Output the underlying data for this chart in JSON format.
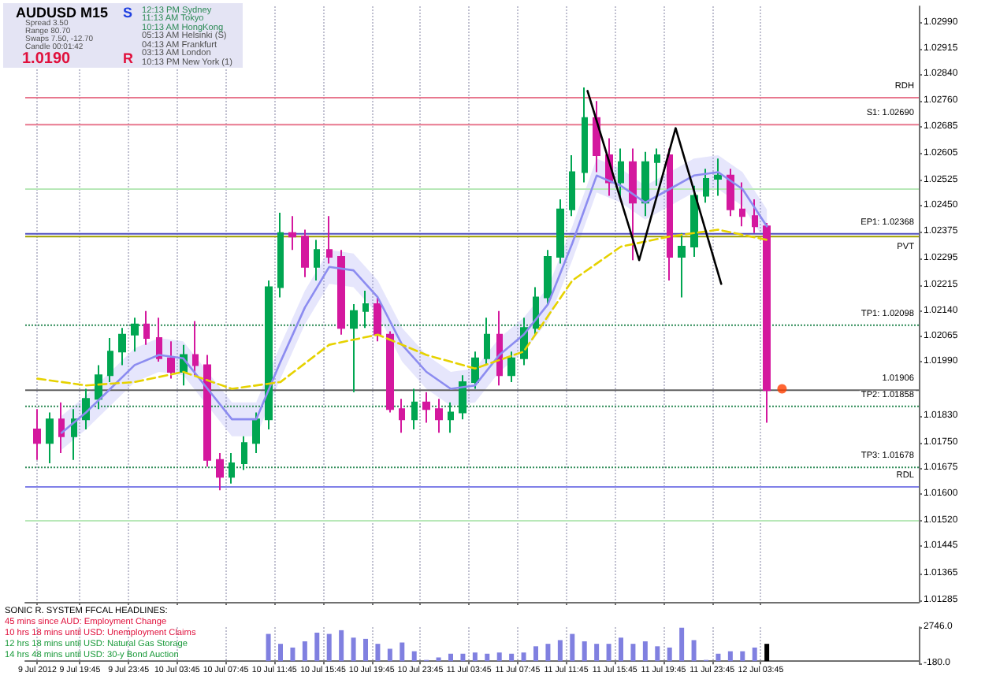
{
  "chart_data": [
    {
      "type": "candlestick",
      "marker": "none",
      "grid": "x",
      "tick_labels": "y",
      "xlim": [
        "2012-07-09T15:15",
        "2012-07-12T16:45"
      ],
      "xticks": [
        {
          "value": "2012-07-09T16:15",
          "label": null
        },
        {
          "value": "2012-07-09T19:45",
          "label": null
        },
        {
          "value": "2012-07-09T23:45",
          "label": null
        },
        {
          "value": "2012-07-10T03:45",
          "label": null
        },
        {
          "value": "2012-07-10T07:45",
          "label": null
        },
        {
          "value": "2012-07-10T11:45",
          "label": null
        },
        {
          "value": "2012-07-10T15:45",
          "label": null
        },
        {
          "value": "2012-07-10T19:45",
          "label": null
        },
        {
          "value": "2012-07-10T23:45",
          "label": null
        },
        {
          "value": "2012-07-11T03:45",
          "label": null
        },
        {
          "value": "2012-07-11T07:45",
          "label": null
        },
        {
          "value": "2012-07-11T11:45",
          "label": null
        },
        {
          "value": "2012-07-11T15:45",
          "label": null
        },
        {
          "value": "2012-07-11T19:45",
          "label": null
        },
        {
          "value": "2012-07-11T23:45",
          "label": null
        },
        {
          "value": "2012-07-12T03:45",
          "label": null
        }
      ],
      "ylim": [
        1.0128,
        1.0304
      ],
      "yticks": [
        {
          "value": 1.0299,
          "label": "1.02990"
        },
        1.02915,
        {
          "value": 1.0284,
          "label": "1.02840"
        },
        {
          "value": 1.0276,
          "label": "1.02760"
        },
        1.02685,
        1.02605,
        1.02525,
        {
          "value": 1.0245,
          "label": "1.02450"
        },
        1.02375,
        1.02295,
        1.02215,
        {
          "value": 1.0214,
          "label": "1.02140"
        },
        1.02065,
        {
          "value": 1.0199,
          "label": "1.01990"
        },
        {
          "value": 1.0183,
          "label": "1.01830"
        },
        {
          "value": 1.0175,
          "label": "1.01750"
        },
        1.01675,
        {
          "value": 1.016,
          "label": "1.01600"
        },
        {
          "value": 1.0152,
          "label": "1.01520"
        },
        1.01445,
        1.01365,
        1.01285
      ],
      "ref_lines": [
        {
          "axis": "y",
          "value": 1.0269,
          "label": "S1: 1.02690",
          "color": "#e8788f"
        },
        {
          "axis": "y",
          "value": 1.02368,
          "label": "EP1: 1.02368",
          "color": "#5050c0"
        },
        {
          "axis": "y",
          "value": 1.02098,
          "label": "TP1: 1.02098",
          "color": "#2e8b57",
          "line_style": "dotted"
        },
        {
          "axis": "y",
          "value": 1.01858,
          "label": "TP2: 1.01858",
          "color": "#2e8b57",
          "line_style": "dotted"
        },
        {
          "axis": "y",
          "value": 1.01678,
          "label": "TP3: 1.01678",
          "color": "#2e8b57",
          "line_style": "dotted"
        },
        {
          "axis": "y",
          "value": 1.01906,
          "label": "1.01906",
          "color": "#606060"
        },
        {
          "axis": "y",
          "value": 1.0277,
          "label": "RDH",
          "color": "#e8788f"
        },
        {
          "axis": "y",
          "value": 1.0236,
          "label": "PVT",
          "color": "#a0a000"
        },
        {
          "axis": "y",
          "value": 1.0162,
          "label": "RDL",
          "color": "#8080e8"
        },
        {
          "axis": "y",
          "value": 1.025,
          "color": "#b8e8b8"
        },
        {
          "axis": "y",
          "value": 1.0152,
          "color": "#b8e8b8"
        }
      ],
      "annotations": [
        "AUDUSD M15",
        "Spread 3.50",
        "Range 80.70",
        "Swaps 7.50, -12.70",
        "Candle 00:01:42",
        "1.0190",
        "S",
        "R",
        "12:13 PM Sydney",
        "11:13 AM Tokyo",
        "10:13 AM HongKong",
        "05:13 AM Helsinki (S)",
        "04:13 AM Frankfurt",
        "03:13 AM London",
        "10:13 PM New York (1)"
      ],
      "series": [
        {
          "x": [
            "2012-07-09T16:15",
            "2012-07-09T17:15",
            "2012-07-09T18:15",
            "2012-07-09T19:15",
            "2012-07-09T20:15",
            "2012-07-09T21:15",
            "2012-07-09T22:15",
            "2012-07-09T23:15",
            "2012-07-10T00:15",
            "2012-07-10T01:15",
            "2012-07-10T02:15",
            "2012-07-10T03:15",
            "2012-07-10T04:15",
            "2012-07-10T05:15",
            "2012-07-10T06:15",
            "2012-07-10T07:15",
            "2012-07-10T08:15",
            "2012-07-10T09:15",
            "2012-07-10T10:15",
            "2012-07-10T11:15",
            "2012-07-10T12:15",
            "2012-07-10T13:15",
            "2012-07-10T14:15",
            "2012-07-10T15:15",
            "2012-07-10T16:15",
            "2012-07-10T17:15",
            "2012-07-10T18:15",
            "2012-07-10T19:15",
            "2012-07-10T20:15",
            "2012-07-10T21:15",
            "2012-07-10T22:15",
            "2012-07-10T23:15",
            "2012-07-11T00:15",
            "2012-07-11T01:15",
            "2012-07-11T02:15",
            "2012-07-11T03:15",
            "2012-07-11T04:15",
            "2012-07-11T05:15",
            "2012-07-11T06:15",
            "2012-07-11T07:15",
            "2012-07-11T08:15",
            "2012-07-11T09:15",
            "2012-07-11T10:15",
            "2012-07-11T11:15",
            "2012-07-11T12:15",
            "2012-07-11T13:15",
            "2012-07-11T14:15",
            "2012-07-11T15:15",
            "2012-07-11T16:15",
            "2012-07-11T17:15",
            "2012-07-11T18:15",
            "2012-07-11T19:15",
            "2012-07-11T20:15",
            "2012-07-11T21:15",
            "2012-07-11T22:15",
            "2012-07-11T23:15",
            "2012-07-12T00:15",
            "2012-07-12T01:15",
            "2012-07-12T02:15",
            "2012-07-12T03:15",
            "2012-07-12T04:15"
          ],
          "ohlc": [
            [
              1.0179,
              1.0185,
              1.017,
              1.0175
            ],
            [
              1.0175,
              1.0184,
              1.0169,
              1.0182
            ],
            [
              1.0182,
              1.0187,
              1.0172,
              1.0177
            ],
            [
              1.0177,
              1.0185,
              1.017,
              1.0182
            ],
            [
              1.0182,
              1.0191,
              1.0179,
              1.0188
            ],
            [
              1.0188,
              1.0198,
              1.0185,
              1.0195
            ],
            [
              1.0195,
              1.0206,
              1.0193,
              1.0202
            ],
            [
              1.0202,
              1.0209,
              1.0198,
              1.0207
            ],
            [
              1.0207,
              1.0212,
              1.0202,
              1.021
            ],
            [
              1.021,
              1.0214,
              1.0204,
              1.0206
            ],
            [
              1.0206,
              1.0212,
              1.0199,
              1.02
            ],
            [
              1.02,
              1.0205,
              1.0194,
              1.0196
            ],
            [
              1.0196,
              1.0204,
              1.0192,
              1.0201
            ],
            [
              1.0201,
              1.0211,
              1.0195,
              1.0198
            ],
            [
              1.0198,
              1.0201,
              1.0168,
              1.017
            ],
            [
              1.017,
              1.0172,
              1.0161,
              1.0165
            ],
            [
              1.0165,
              1.0172,
              1.0163,
              1.0169
            ],
            [
              1.0169,
              1.0177,
              1.0167,
              1.0175
            ],
            [
              1.0175,
              1.0184,
              1.0172,
              1.0182
            ],
            [
              1.0182,
              1.0223,
              1.0179,
              1.0221
            ],
            [
              1.0221,
              1.0243,
              1.0218,
              1.0237
            ],
            [
              1.0237,
              1.0242,
              1.0232,
              1.0236
            ],
            [
              1.0236,
              1.0238,
              1.0224,
              1.0227
            ],
            [
              1.0227,
              1.0235,
              1.0223,
              1.0232
            ],
            [
              1.0232,
              1.0242,
              1.0228,
              1.023
            ],
            [
              1.023,
              1.0232,
              1.0207,
              1.0209
            ],
            [
              1.0209,
              1.0216,
              1.019,
              1.0214
            ],
            [
              1.0214,
              1.022,
              1.0209,
              1.0216
            ],
            [
              1.0216,
              1.0218,
              1.0205,
              1.0207
            ],
            [
              1.0207,
              1.0208,
              1.0184,
              1.0185
            ],
            [
              1.0185,
              1.0188,
              1.0178,
              1.0182
            ],
            [
              1.0182,
              1.0191,
              1.0179,
              1.0187
            ],
            [
              1.0187,
              1.019,
              1.0181,
              1.0185
            ],
            [
              1.0185,
              1.0188,
              1.0178,
              1.0182
            ],
            [
              1.0182,
              1.0187,
              1.0178,
              1.0184
            ],
            [
              1.0184,
              1.0195,
              1.0182,
              1.0193
            ],
            [
              1.0193,
              1.0202,
              1.0191,
              1.02
            ],
            [
              1.02,
              1.0212,
              1.0198,
              1.0207
            ],
            [
              1.0207,
              1.0214,
              1.0192,
              1.0195
            ],
            [
              1.0195,
              1.0202,
              1.0193,
              1.02
            ],
            [
              1.02,
              1.0212,
              1.0198,
              1.0209
            ],
            [
              1.0209,
              1.0221,
              1.0207,
              1.0218
            ],
            [
              1.0218,
              1.0232,
              1.0216,
              1.023
            ],
            [
              1.023,
              1.0247,
              1.0228,
              1.0244
            ],
            [
              1.0244,
              1.026,
              1.0242,
              1.0255
            ],
            [
              1.0255,
              1.028,
              1.0252,
              1.0271
            ],
            [
              1.0271,
              1.0276,
              1.0255,
              1.026
            ],
            [
              1.026,
              1.0265,
              1.0248,
              1.0252
            ],
            [
              1.0252,
              1.0262,
              1.0247,
              1.0258
            ],
            [
              1.0258,
              1.0262,
              1.0229,
              1.0246
            ],
            [
              1.0246,
              1.0261,
              1.0242,
              1.0258
            ],
            [
              1.0258,
              1.0262,
              1.0251,
              1.026
            ],
            [
              1.026,
              1.0262,
              1.0223,
              1.023
            ],
            [
              1.023,
              1.0237,
              1.0218,
              1.0233
            ],
            [
              1.0233,
              1.0251,
              1.023,
              1.0248
            ],
            [
              1.0248,
              1.0256,
              1.0246,
              1.0253
            ],
            [
              1.0253,
              1.0259,
              1.0248,
              1.0254
            ],
            [
              1.0254,
              1.0256,
              1.0242,
              1.0244
            ],
            [
              1.0244,
              1.0252,
              1.0239,
              1.0242
            ],
            [
              1.0242,
              1.0247,
              1.0237,
              1.0239
            ],
            [
              1.0239,
              1.024,
              1.0181,
              1.01906
            ]
          ],
          "colors": [
            "#d4189e",
            "#00a651",
            "#d4189e",
            "#00a651",
            "#00a651",
            "#00a651",
            "#00a651",
            "#00a651",
            "#00a651",
            "#d4189e",
            "#d4189e",
            "#d4189e",
            "#00a651",
            "#d4189e",
            "#d4189e",
            "#d4189e",
            "#00a651",
            "#00a651",
            "#00a651",
            "#00a651",
            "#00a651",
            "#d4189e",
            "#d4189e",
            "#00a651",
            "#d4189e",
            "#d4189e",
            "#00a651",
            "#00a651",
            "#d4189e",
            "#d4189e",
            "#d4189e",
            "#00a651",
            "#d4189e",
            "#d4189e",
            "#00a651",
            "#00a651",
            "#00a651",
            "#00a651",
            "#d4189e",
            "#00a651",
            "#00a651",
            "#00a651",
            "#00a651",
            "#00a651",
            "#00a651",
            "#00a651",
            "#d4189e",
            "#d4189e",
            "#00a651",
            "#d4189e",
            "#00a651",
            "#00a651",
            "#d4189e",
            "#00a651",
            "#00a651",
            "#00a651",
            "#00a651",
            "#d4189e",
            "#d4189e",
            "#d4189e",
            "#d4189e"
          ]
        },
        {
          "type": "line",
          "color": "#8c8cf0",
          "x": [
            "2012-07-09T18:15",
            "2012-07-09T20:15",
            "2012-07-09T22:15",
            "2012-07-10T00:15",
            "2012-07-10T02:15",
            "2012-07-10T04:15",
            "2012-07-10T06:15",
            "2012-07-10T08:15",
            "2012-07-10T10:15",
            "2012-07-10T12:15",
            "2012-07-10T14:15",
            "2012-07-10T16:15",
            "2012-07-10T18:15",
            "2012-07-10T20:15",
            "2012-07-10T22:15",
            "2012-07-11T00:15",
            "2012-07-11T02:15",
            "2012-07-11T04:15",
            "2012-07-11T06:15",
            "2012-07-11T08:15",
            "2012-07-11T10:15",
            "2012-07-11T12:15",
            "2012-07-11T14:15",
            "2012-07-11T16:15",
            "2012-07-11T18:15",
            "2012-07-11T20:15",
            "2012-07-11T22:15",
            "2012-07-12T00:15",
            "2012-07-12T02:15",
            "2012-07-12T04:15"
          ],
          "values": [
            1.0178,
            1.0184,
            1.0191,
            1.0198,
            1.0201,
            1.02,
            1.0191,
            1.0182,
            1.0182,
            1.0199,
            1.0215,
            1.0227,
            1.0226,
            1.0218,
            1.0204,
            1.0196,
            1.0191,
            1.0192,
            1.0201,
            1.0207,
            1.0216,
            1.0234,
            1.0254,
            1.0251,
            1.0246,
            1.025,
            1.0254,
            1.0255,
            1.025,
            1.0239
          ],
          "upper": [
            1.0183,
            1.0189,
            1.0196,
            1.0203,
            1.0206,
            1.0205,
            1.0196,
            1.0187,
            1.0187,
            1.0204,
            1.022,
            1.0232,
            1.0231,
            1.0223,
            1.0209,
            1.0201,
            1.0196,
            1.0197,
            1.0206,
            1.0212,
            1.0221,
            1.0239,
            1.0259,
            1.0256,
            1.0251,
            1.0255,
            1.0259,
            1.026,
            1.0255,
            1.0244
          ],
          "lower": [
            1.0173,
            1.0179,
            1.0186,
            1.0193,
            1.0196,
            1.0195,
            1.0186,
            1.0177,
            1.0177,
            1.0194,
            1.021,
            1.0222,
            1.0221,
            1.0213,
            1.0199,
            1.0191,
            1.0186,
            1.0187,
            1.0196,
            1.0202,
            1.0211,
            1.0229,
            1.0249,
            1.0246,
            1.0241,
            1.0245,
            1.0249,
            1.025,
            1.0245,
            1.0234
          ]
        },
        {
          "type": "line",
          "color": "#e6d200",
          "line_style": "dashed",
          "x": [
            "2012-07-09T16:15",
            "2012-07-09T20:15",
            "2012-07-10T00:15",
            "2012-07-10T04:15",
            "2012-07-10T08:15",
            "2012-07-10T12:15",
            "2012-07-10T16:15",
            "2012-07-10T20:15",
            "2012-07-11T00:15",
            "2012-07-11T04:15",
            "2012-07-11T08:15",
            "2012-07-11T12:15",
            "2012-07-11T16:15",
            "2012-07-11T20:15",
            "2012-07-12T00:15",
            "2012-07-12T04:15"
          ],
          "values": [
            1.0194,
            1.0192,
            1.0193,
            1.0196,
            1.0191,
            1.0193,
            1.0204,
            1.0207,
            1.0201,
            1.0197,
            1.0202,
            1.0223,
            1.0233,
            1.0236,
            1.0238,
            1.0235
          ]
        },
        {
          "type": "line",
          "color": "#000000",
          "x": [
            "2012-07-11T13:30",
            "2012-07-11T17:45",
            "2012-07-11T20:45",
            "2012-07-12T00:30"
          ],
          "values": [
            1.0279,
            1.0229,
            1.0268,
            1.0222
          ]
        },
        {
          "type": "scatter",
          "color": "#ff4000",
          "marker": "circle",
          "x": [
            "2012-07-12T05:30"
          ],
          "values": [
            1.0191
          ]
        }
      ]
    },
    {
      "type": "bar",
      "grid": "x",
      "xlim": [
        "2012-07-09T15:15",
        "2012-07-12T16:45"
      ],
      "xticks": [
        {
          "value": "2012-07-09T16:15",
          "label": "9 Jul 2012"
        },
        {
          "value": "2012-07-09T19:45",
          "label": "9 Jul 19:45"
        },
        {
          "value": "2012-07-09T23:45",
          "label": "9 Jul 23:45"
        },
        {
          "value": "2012-07-10T03:45",
          "label": "10 Jul 03:45"
        },
        {
          "value": "2012-07-10T07:45",
          "label": "10 Jul 07:45"
        },
        {
          "value": "2012-07-10T11:45",
          "label": "10 Jul 11:45"
        },
        {
          "value": "2012-07-10T15:45",
          "label": "10 Jul 15:45"
        },
        {
          "value": "2012-07-10T19:45",
          "label": "10 Jul 19:45"
        },
        {
          "value": "2012-07-10T23:45",
          "label": "10 Jul 23:45"
        },
        {
          "value": "2012-07-11T03:45",
          "label": "11 Jul 03:45"
        },
        {
          "value": "2012-07-11T07:45",
          "label": "11 Jul 07:45"
        },
        {
          "value": "2012-07-11T11:45",
          "label": "11 Jul 11:45"
        },
        {
          "value": "2012-07-11T15:45",
          "label": "11 Jul 15:45"
        },
        {
          "value": "2012-07-11T19:45",
          "label": "11 Jul 19:45"
        },
        {
          "value": "2012-07-11T23:45",
          "label": "11 Jul 23:45"
        },
        {
          "value": "2012-07-12T03:45",
          "label": "12 Jul 03:45"
        }
      ],
      "ylim": [
        -180,
        2746
      ],
      "yticks": [
        {
          "value": -180,
          "label": "-180.0"
        },
        {
          "value": 2746,
          "label": "2746.0"
        }
      ],
      "annotations": [
        "SONIC R. SYSTEM  FFCAL HEADLINES:",
        "45 mins since AUD: Employment Change",
        "10 hrs 18 mins until USD: Unemployment Claims",
        "12 hrs 18 mins until USD: Natural Gas Storage",
        "14 hrs 48 mins until USD: 30-y Bond Auction"
      ],
      "x": [
        "2012-07-10T11:15",
        "2012-07-10T12:15",
        "2012-07-10T13:15",
        "2012-07-10T14:15",
        "2012-07-10T15:15",
        "2012-07-10T16:15",
        "2012-07-10T17:15",
        "2012-07-10T18:15",
        "2012-07-10T19:15",
        "2012-07-10T20:15",
        "2012-07-10T21:15",
        "2012-07-10T22:15",
        "2012-07-10T23:15",
        "2012-07-11T00:15",
        "2012-07-11T01:15",
        "2012-07-11T02:15",
        "2012-07-11T03:15",
        "2012-07-11T04:15",
        "2012-07-11T05:15",
        "2012-07-11T06:15",
        "2012-07-11T07:15",
        "2012-07-11T08:15",
        "2012-07-11T09:15",
        "2012-07-11T10:15",
        "2012-07-11T11:15",
        "2012-07-11T12:15",
        "2012-07-11T13:15",
        "2012-07-11T14:15",
        "2012-07-11T15:15",
        "2012-07-11T16:15",
        "2012-07-11T17:15",
        "2012-07-11T18:15",
        "2012-07-11T19:15",
        "2012-07-11T20:15",
        "2012-07-11T21:15",
        "2012-07-11T22:15",
        "2012-07-11T23:15",
        "2012-07-12T00:15",
        "2012-07-12T01:15",
        "2012-07-12T02:15",
        "2012-07-12T03:15",
        "2012-07-12T04:15"
      ],
      "values": [
        2200,
        1400,
        1100,
        1600,
        2300,
        2200,
        2500,
        1900,
        1800,
        1400,
        1000,
        1500,
        800,
        100,
        300,
        600,
        600,
        700,
        600,
        700,
        600,
        700,
        1200,
        1400,
        1700,
        2200,
        1600,
        1400,
        1400,
        1900,
        1400,
        1600,
        1200,
        1100,
        2700,
        1700,
        100,
        600,
        800,
        800,
        1100,
        1400
      ],
      "colors": [
        "#8080e0",
        "#8080e0",
        "#8080e0",
        "#8080e0",
        "#8080e0",
        "#8080e0",
        "#8080e0",
        "#8080e0",
        "#8080e0",
        "#8080e0",
        "#8080e0",
        "#8080e0",
        "#8080e0",
        "#8080e0",
        "#8080e0",
        "#8080e0",
        "#8080e0",
        "#8080e0",
        "#8080e0",
        "#8080e0",
        "#8080e0",
        "#8080e0",
        "#8080e0",
        "#8080e0",
        "#8080e0",
        "#8080e0",
        "#8080e0",
        "#8080e0",
        "#8080e0",
        "#8080e0",
        "#8080e0",
        "#8080e0",
        "#8080e0",
        "#8080e0",
        "#8080e0",
        "#8080e0",
        "#8080e0",
        "#8080e0",
        "#8080e0",
        "#8080e0",
        "#8080e0",
        "#000000"
      ]
    }
  ]
}
